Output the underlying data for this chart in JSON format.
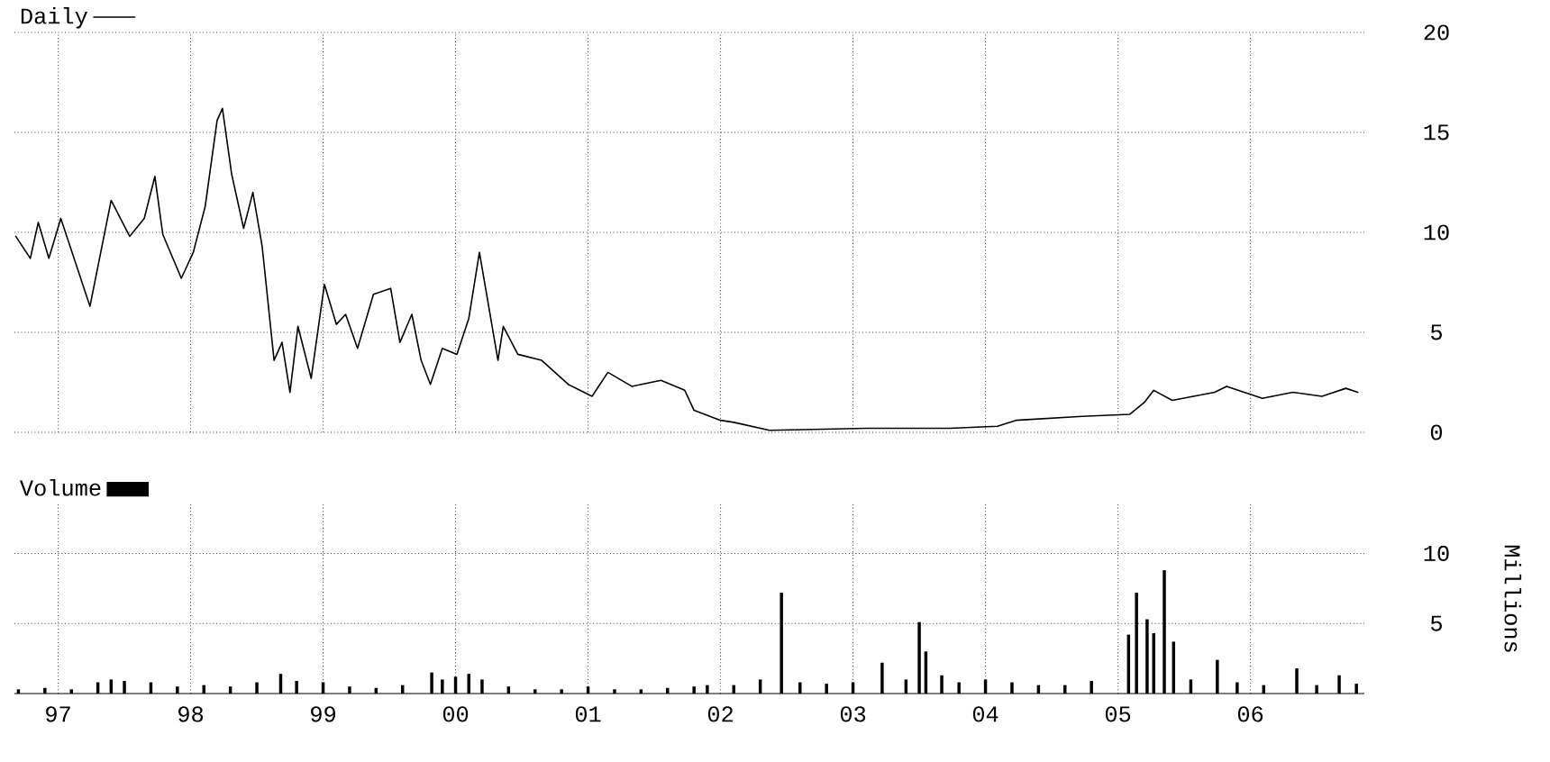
{
  "chart_data": [
    {
      "type": "line",
      "xlim": [
        1996.67,
        2006.86
      ],
      "ylim": [
        0,
        20
      ],
      "yticks": [
        0,
        5,
        10,
        15,
        20
      ],
      "xticks": [
        {
          "value": 1997,
          "label": null
        },
        {
          "value": 1998,
          "label": null
        },
        {
          "value": 1999,
          "label": null
        },
        {
          "value": 2000,
          "label": null
        },
        {
          "value": 2001,
          "label": null
        },
        {
          "value": 2002,
          "label": null
        },
        {
          "value": 2003,
          "label": null
        },
        {
          "value": 2004,
          "label": null
        },
        {
          "value": 2005,
          "label": null
        },
        {
          "value": 2006,
          "label": null
        }
      ],
      "tick_labels": "y",
      "grid": true,
      "legend": "top left",
      "series": [
        {
          "name": "Daily",
          "color": "#000000",
          "x": [
            1996.68,
            1996.79,
            1996.85,
            1996.93,
            1997.02,
            1997.24,
            1997.4,
            1997.54,
            1997.65,
            1997.73,
            1997.79,
            1997.93,
            1998.02,
            1998.11,
            1998.2,
            1998.24,
            1998.31,
            1998.4,
            1998.47,
            1998.54,
            1998.63,
            1998.69,
            1998.75,
            1998.81,
            1998.91,
            1999.01,
            1999.1,
            1999.17,
            1999.26,
            1999.38,
            1999.51,
            1999.58,
            1999.67,
            1999.74,
            1999.81,
            1999.9,
            2000.01,
            2000.1,
            2000.18,
            2000.25,
            2000.32,
            2000.36,
            2000.47,
            2000.65,
            2000.85,
            2001.03,
            2001.15,
            2001.33,
            2001.55,
            2001.73,
            2001.8,
            2002.0,
            2002.1,
            2002.37,
            2003.1,
            2003.73,
            2004.09,
            2004.23,
            2004.73,
            2005.09,
            2005.2,
            2005.27,
            2005.41,
            2005.73,
            2005.82,
            2006.09,
            2006.32,
            2006.54,
            2006.72,
            2006.81
          ],
          "values": [
            9.8,
            8.7,
            10.5,
            8.7,
            10.7,
            6.3,
            11.6,
            9.8,
            10.7,
            12.8,
            9.9,
            7.7,
            9.0,
            11.3,
            15.6,
            16.2,
            12.9,
            10.2,
            12.0,
            9.3,
            3.6,
            4.5,
            2.0,
            5.3,
            2.7,
            7.4,
            5.4,
            5.9,
            4.2,
            6.9,
            7.2,
            4.5,
            5.9,
            3.6,
            2.4,
            4.2,
            3.9,
            5.7,
            9.0,
            6.3,
            3.6,
            5.3,
            3.9,
            3.6,
            2.4,
            1.8,
            3.0,
            2.3,
            2.6,
            2.1,
            1.1,
            0.6,
            0.5,
            0.1,
            0.2,
            0.2,
            0.3,
            0.6,
            0.8,
            0.9,
            1.5,
            2.1,
            1.6,
            2.0,
            2.3,
            1.7,
            2.0,
            1.8,
            2.2,
            2.0
          ]
        }
      ]
    },
    {
      "type": "bar",
      "xlim": [
        1996.67,
        2006.86
      ],
      "ylim": [
        0,
        13.5
      ],
      "yticks": [
        5,
        10
      ],
      "ylabel": "Millions",
      "xticks": [
        {
          "value": 1997,
          "label": "97"
        },
        {
          "value": 1998,
          "label": "98"
        },
        {
          "value": 1999,
          "label": "99"
        },
        {
          "value": 2000,
          "label": "00"
        },
        {
          "value": 2001,
          "label": "01"
        },
        {
          "value": 2002,
          "label": "02"
        },
        {
          "value": 2003,
          "label": "03"
        },
        {
          "value": 2004,
          "label": "04"
        },
        {
          "value": 2005,
          "label": "05"
        },
        {
          "value": 2006,
          "label": "06"
        }
      ],
      "grid": true,
      "legend": "top left",
      "series": [
        {
          "name": "Volume",
          "color": "#000000",
          "x": [
            1996.7,
            1996.9,
            1997.1,
            1997.3,
            1997.4,
            1997.5,
            1997.7,
            1997.9,
            1998.1,
            1998.3,
            1998.5,
            1998.68,
            1998.8,
            1999.0,
            1999.2,
            1999.4,
            1999.6,
            1999.82,
            1999.9,
            2000.0,
            2000.1,
            2000.2,
            2000.4,
            2000.6,
            2000.8,
            2001.0,
            2001.2,
            2001.4,
            2001.6,
            2001.8,
            2001.9,
            2002.1,
            2002.3,
            2002.46,
            2002.6,
            2002.8,
            2003.0,
            2003.22,
            2003.4,
            2003.5,
            2003.55,
            2003.67,
            2003.8,
            2004.0,
            2004.2,
            2004.4,
            2004.6,
            2004.8,
            2005.08,
            2005.14,
            2005.22,
            2005.27,
            2005.35,
            2005.42,
            2005.55,
            2005.75,
            2005.9,
            2006.1,
            2006.35,
            2006.5,
            2006.67,
            2006.8
          ],
          "values": [
            0.3,
            0.4,
            0.3,
            0.8,
            1.0,
            0.9,
            0.8,
            0.5,
            0.6,
            0.5,
            0.8,
            1.4,
            0.9,
            0.8,
            0.5,
            0.4,
            0.6,
            1.5,
            1.0,
            1.2,
            1.4,
            1.0,
            0.5,
            0.3,
            0.3,
            0.5,
            0.3,
            0.3,
            0.4,
            0.5,
            0.6,
            0.6,
            1.0,
            7.2,
            0.8,
            0.7,
            0.8,
            2.2,
            1.0,
            5.1,
            3.0,
            1.3,
            0.8,
            1.0,
            0.8,
            0.6,
            0.6,
            0.9,
            4.2,
            7.2,
            5.3,
            4.3,
            8.8,
            3.7,
            1.0,
            2.4,
            0.8,
            0.6,
            1.8,
            0.6,
            1.3,
            0.7
          ]
        }
      ]
    }
  ]
}
